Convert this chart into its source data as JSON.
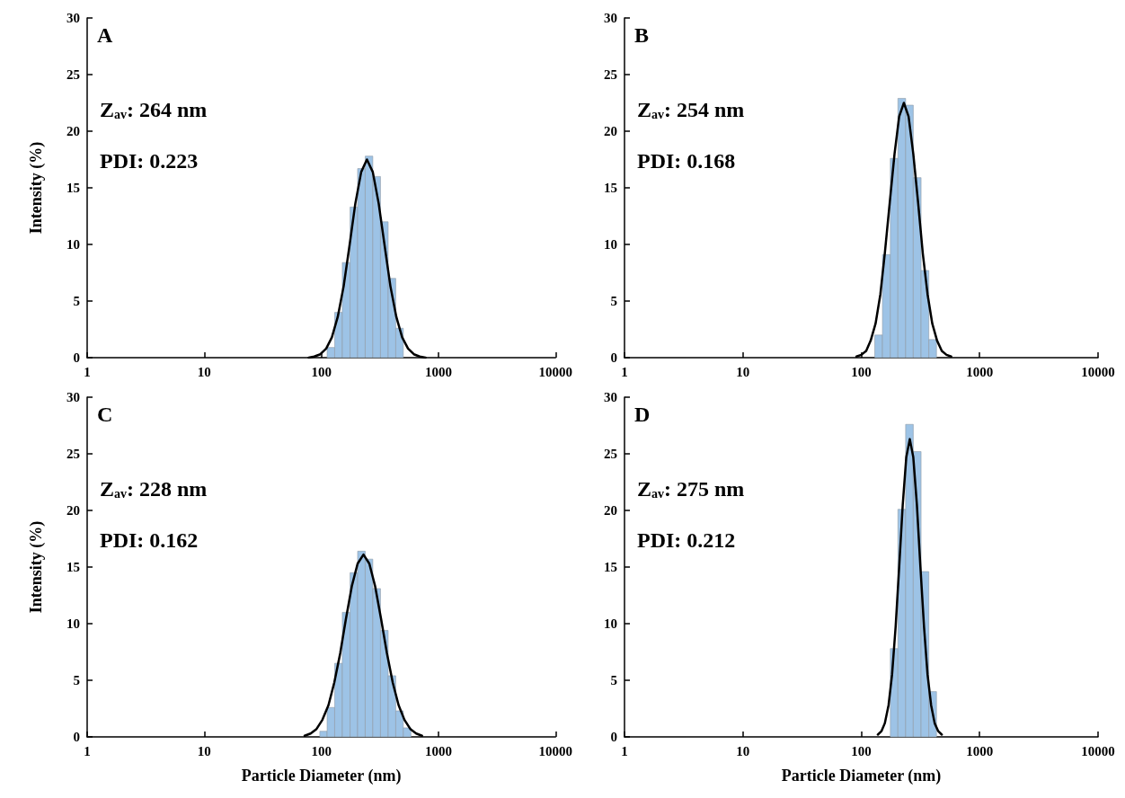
{
  "chart_data": [
    {
      "type": "histogram",
      "title": "A",
      "ylabel": "Intensity (%)",
      "annotations": [
        "Z$_{av}$: 264 nm",
        "PDI: 0.223"
      ],
      "bins": [
        112,
        130,
        151,
        176,
        204,
        237,
        275,
        320,
        372,
        432,
        501
      ],
      "values": [
        0.9,
        4.0,
        8.4,
        13.3,
        16.7,
        17.8,
        16.0,
        12.0,
        7.0,
        2.6
      ],
      "color": "#9dc3e6",
      "series": [
        {
          "type": "line",
          "color": "#000000",
          "x": [
            78,
            87,
            98,
            110,
            123,
            138,
            155,
            174,
            195,
            219,
            245,
            275,
            309,
            347,
            389,
            437,
            490,
            550,
            617,
            692,
            776
          ],
          "values": [
            0,
            0.1,
            0.3,
            0.8,
            1.8,
            3.6,
            6.3,
            9.9,
            13.6,
            16.4,
            17.5,
            16.4,
            13.6,
            9.9,
            6.3,
            3.6,
            1.8,
            0.8,
            0.3,
            0.1,
            0
          ]
        }
      ],
      "marker": "none",
      "log": "x",
      "xlim": [
        1,
        10000
      ],
      "xticks": [
        1,
        10,
        100,
        1000,
        10000
      ],
      "ylim": [
        0,
        30
      ],
      "yticks": [
        0,
        5,
        10,
        15,
        20,
        25,
        30
      ]
    },
    {
      "type": "histogram",
      "title": "B",
      "annotations": [
        "Z$_{av}$: 254 nm",
        "PDI: 0.168"
      ],
      "bins": [
        130,
        151,
        176,
        204,
        237,
        275,
        320,
        372,
        432
      ],
      "values": [
        2.0,
        9.1,
        17.6,
        22.9,
        22.3,
        15.9,
        7.7,
        1.6
      ],
      "color": "#9dc3e6",
      "series": [
        {
          "type": "line",
          "color": "#000000",
          "x": [
            91,
            100,
            110,
            120,
            132,
            145,
            158,
            174,
            191,
            209,
            229,
            251,
            275,
            302,
            331,
            363,
            398,
            437,
            479,
            525,
            575
          ],
          "values": [
            0.1,
            0.25,
            0.6,
            1.5,
            3.0,
            5.6,
            9.2,
            13.7,
            18.0,
            21.3,
            22.5,
            21.3,
            18.0,
            13.7,
            9.2,
            5.6,
            3.0,
            1.5,
            0.6,
            0.25,
            0.1
          ]
        }
      ],
      "marker": "none",
      "log": "x",
      "xlim": [
        1,
        10000
      ],
      "xticks": [
        1,
        10,
        100,
        1000,
        10000
      ],
      "ylim": [
        0,
        30
      ],
      "yticks": [
        0,
        5,
        10,
        15,
        20,
        25,
        30
      ]
    },
    {
      "type": "histogram",
      "title": "C",
      "xlabel": "Particle Diameter (nm)",
      "ylabel": "Intensity (%)",
      "annotations": [
        "Z$_{av}$: 228 nm",
        "PDI: 0.162"
      ],
      "bins": [
        97,
        112,
        130,
        151,
        176,
        204,
        237,
        275,
        320,
        372,
        432,
        501,
        582
      ],
      "values": [
        0.5,
        2.6,
        6.5,
        11.0,
        14.5,
        16.4,
        15.7,
        13.1,
        9.4,
        5.4,
        2.3,
        0.8
      ],
      "color": "#9dc3e6",
      "series": [
        {
          "type": "line",
          "color": "#000000",
          "x": [
            72,
            81,
            91,
            102,
            115,
            129,
            145,
            162,
            182,
            204,
            229,
            257,
            288,
            324,
            363,
            407,
            457,
            513,
            575,
            646,
            724
          ],
          "values": [
            0.1,
            0.3,
            0.7,
            1.5,
            2.8,
            4.8,
            7.4,
            10.4,
            13.3,
            15.3,
            16.1,
            15.3,
            13.3,
            10.4,
            7.4,
            4.8,
            2.8,
            1.5,
            0.7,
            0.3,
            0.1
          ]
        }
      ],
      "marker": "none",
      "log": "x",
      "xlim": [
        1,
        10000
      ],
      "xticks": [
        1,
        10,
        100,
        1000,
        10000
      ],
      "ylim": [
        0,
        30
      ],
      "yticks": [
        0,
        5,
        10,
        15,
        20,
        25,
        30
      ]
    },
    {
      "type": "histogram",
      "title": "D",
      "xlabel": "Particle Diameter (nm)",
      "annotations": [
        "Z$_{av}$: 275 nm",
        "PDI: 0.212"
      ],
      "bins": [
        176,
        204,
        237,
        275,
        320,
        372,
        432
      ],
      "values": [
        7.8,
        20.1,
        27.6,
        25.2,
        14.6,
        4.0
      ],
      "color": "#9dc3e6",
      "series": [
        {
          "type": "line",
          "color": "#000000",
          "x": [
            138,
            148,
            158,
            170,
            182,
            195,
            209,
            224,
            240,
            257,
            275,
            295,
            316,
            339,
            363,
            389,
            417,
            447,
            479
          ],
          "values": [
            0.2,
            0.5,
            1.2,
            2.8,
            5.5,
            9.7,
            15.0,
            20.5,
            24.7,
            26.3,
            24.7,
            20.5,
            15.0,
            9.7,
            5.5,
            2.8,
            1.2,
            0.5,
            0.2
          ]
        }
      ],
      "marker": "none",
      "log": "x",
      "xlim": [
        1,
        10000
      ],
      "xticks": [
        1,
        10,
        100,
        1000,
        10000
      ],
      "ylim": [
        0,
        30
      ],
      "yticks": [
        0,
        5,
        10,
        15,
        20,
        25,
        30
      ]
    }
  ]
}
